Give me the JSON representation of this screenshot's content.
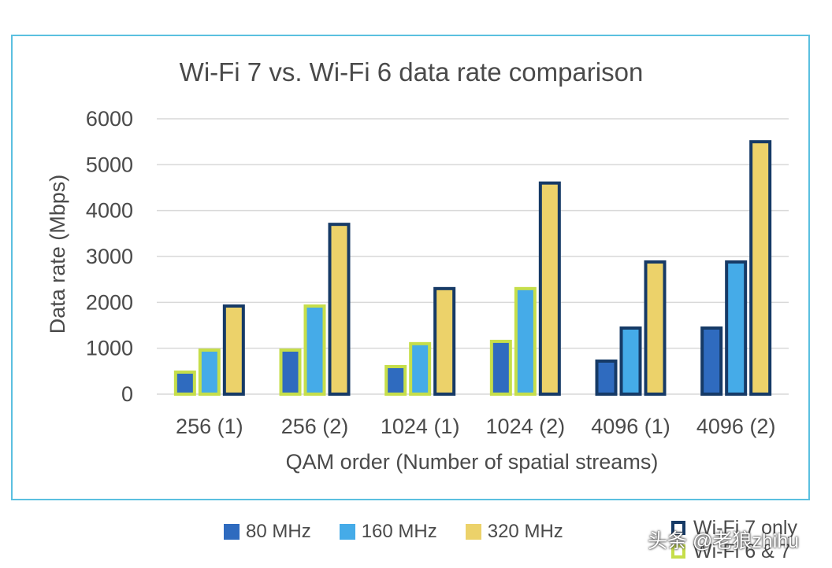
{
  "chart_data": {
    "type": "bar",
    "title": "Wi-Fi 7 vs. Wi-Fi 6 data rate comparison",
    "xlabel": "QAM order (Number of spatial streams)",
    "ylabel": "Data rate (Mbps)",
    "ylim": [
      0,
      6000
    ],
    "yticks": [
      "0",
      "1000",
      "2000",
      "3000",
      "4000",
      "5000",
      "6000"
    ],
    "grid": true,
    "legend_position": "bottom",
    "categories": [
      "256 (1)",
      "256 (2)",
      "1024 (1)",
      "1024 (2)",
      "4096 (1)",
      "4096 (2)"
    ],
    "series": [
      {
        "name": "80 MHz",
        "color": "#2f6bbf",
        "values": [
          480,
          960,
          600,
          1150,
          720,
          1440
        ],
        "support": [
          "Wi-Fi 6 & 7",
          "Wi-Fi 6 & 7",
          "Wi-Fi 6 & 7",
          "Wi-Fi 6 & 7",
          "Wi-Fi 7 only",
          "Wi-Fi 7 only"
        ]
      },
      {
        "name": "160 MHz",
        "color": "#45abe8",
        "values": [
          960,
          1920,
          1100,
          2300,
          1440,
          2880
        ],
        "support": [
          "Wi-Fi 6 & 7",
          "Wi-Fi 6 & 7",
          "Wi-Fi 6 & 7",
          "Wi-Fi 6 & 7",
          "Wi-Fi 7 only",
          "Wi-Fi 7 only"
        ]
      },
      {
        "name": "320 MHz",
        "color": "#ecd26a",
        "values": [
          1920,
          3700,
          2300,
          4600,
          2880,
          5500
        ],
        "support": [
          "Wi-Fi 7 only",
          "Wi-Fi 7 only",
          "Wi-Fi 7 only",
          "Wi-Fi 7 only",
          "Wi-Fi 7 only",
          "Wi-Fi 7 only"
        ]
      }
    ],
    "outline_legend": [
      {
        "label": "Wi-Fi 7 only",
        "color": "#163a66"
      },
      {
        "label": "Wi-Fi 6 & 7",
        "color": "#c6de4a"
      }
    ]
  },
  "watermark": "头条 @老狼zhihu"
}
